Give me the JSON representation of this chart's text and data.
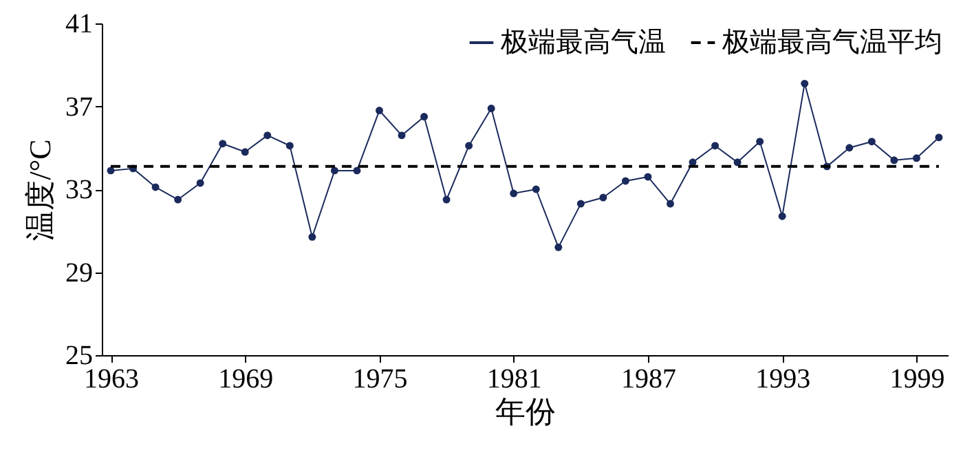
{
  "chart_data": {
    "type": "line",
    "xlabel": "年份",
    "ylabel": "温度/°C",
    "x": [
      1963,
      1964,
      1965,
      1966,
      1967,
      1968,
      1969,
      1970,
      1971,
      1972,
      1973,
      1974,
      1975,
      1976,
      1977,
      1978,
      1979,
      1980,
      1981,
      1982,
      1983,
      1984,
      1985,
      1986,
      1987,
      1988,
      1989,
      1990,
      1991,
      1992,
      1993,
      1994,
      1995,
      1996,
      1997,
      1998,
      1999,
      2000
    ],
    "series": [
      {
        "name": "极端最高气温",
        "color": "#1b2a5c",
        "marker": "circle",
        "line_style": "solid",
        "values": [
          33.9,
          34.0,
          33.1,
          32.5,
          33.3,
          35.2,
          34.8,
          35.6,
          35.1,
          30.7,
          33.9,
          33.9,
          36.8,
          35.6,
          36.5,
          32.5,
          35.1,
          36.9,
          32.8,
          33.0,
          30.2,
          32.3,
          32.6,
          33.4,
          33.6,
          32.3,
          34.3,
          35.1,
          34.3,
          35.3,
          31.7,
          38.1,
          34.1,
          35.0,
          35.3,
          34.4,
          34.5,
          35.5
        ]
      },
      {
        "name": "极端最高气温平均",
        "color": "#000000",
        "marker": "none",
        "line_style": "dashed",
        "values": [
          34.1,
          34.1,
          34.1,
          34.1,
          34.1,
          34.1,
          34.1,
          34.1,
          34.1,
          34.1,
          34.1,
          34.1,
          34.1,
          34.1,
          34.1,
          34.1,
          34.1,
          34.1,
          34.1,
          34.1,
          34.1,
          34.1,
          34.1,
          34.1,
          34.1,
          34.1,
          34.1,
          34.1,
          34.1,
          34.1,
          34.1,
          34.1,
          34.1,
          34.1,
          34.1,
          34.1,
          34.1,
          34.1
        ]
      }
    ],
    "xlim": [
      1962.6,
      2000.4
    ],
    "xticks": [
      1963,
      1969,
      1975,
      1981,
      1987,
      1993,
      1999
    ],
    "ylim": [
      25,
      41
    ],
    "yticks": [
      25,
      29,
      33,
      37,
      41
    ],
    "grid": false,
    "legend": "top right"
  }
}
